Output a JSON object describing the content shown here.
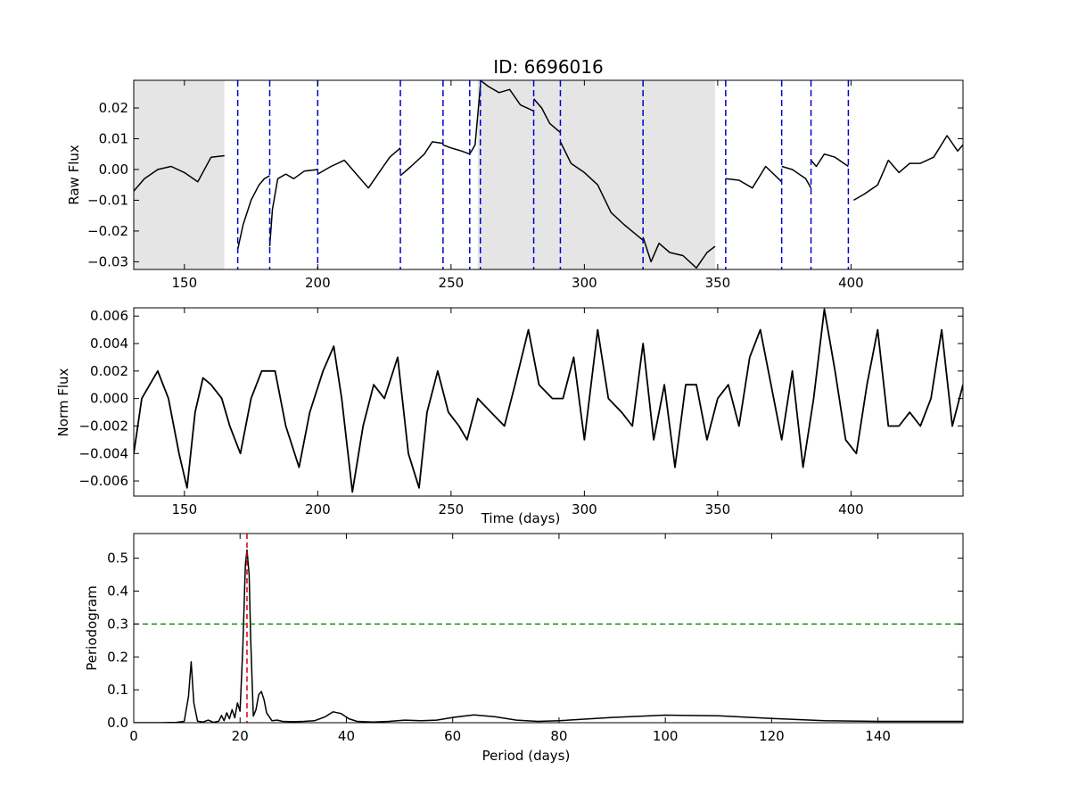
{
  "chart_data": [
    {
      "type": "line",
      "title": "ID: 6696016",
      "xlabel": "",
      "ylabel": "Raw Flux",
      "xlim": [
        131,
        442
      ],
      "ylim": [
        -0.0325,
        0.029
      ],
      "xticks": [
        150,
        200,
        250,
        300,
        350,
        400
      ],
      "yticks": [
        -0.03,
        -0.02,
        -0.01,
        0.0,
        0.01,
        0.02
      ],
      "ytick_labels": [
        "−0.03",
        "−0.02",
        "−0.01",
        "0.00",
        "0.01",
        "0.02"
      ],
      "shaded_ranges": [
        [
          131,
          165
        ],
        [
          260,
          349
        ]
      ],
      "shade_color": "#e5e5e5",
      "vlines": [
        170,
        182,
        200,
        231,
        247,
        257,
        261,
        281,
        291,
        322,
        353,
        374,
        385,
        399
      ],
      "vline_color": "#0000cc",
      "line_color": "#000000",
      "series": [
        {
          "x": [
            131,
            135,
            140,
            145,
            150,
            155,
            160,
            165
          ],
          "y": [
            -0.007,
            -0.003,
            0.0,
            0.001,
            -0.001,
            -0.004,
            0.004,
            0.0045
          ]
        },
        {
          "x": [
            170,
            172,
            175,
            178,
            180,
            182
          ],
          "y": [
            -0.026,
            -0.018,
            -0.01,
            -0.005,
            -0.003,
            -0.002
          ]
        },
        {
          "x": [
            182,
            183,
            185,
            188,
            191,
            195,
            200
          ],
          "y": [
            -0.025,
            -0.013,
            -0.003,
            -0.0015,
            -0.003,
            -0.0005,
            0.0
          ]
        },
        {
          "x": [
            200,
            205,
            210,
            215,
            219,
            223,
            227,
            231
          ],
          "y": [
            -0.0015,
            0.001,
            0.003,
            -0.002,
            -0.006,
            -0.001,
            0.004,
            0.007
          ]
        },
        {
          "x": [
            231,
            235,
            240,
            243,
            247
          ],
          "y": [
            -0.002,
            0.001,
            0.005,
            0.009,
            0.0085
          ]
        },
        {
          "x": [
            247,
            250,
            254,
            257
          ],
          "y": [
            0.008,
            0.007,
            0.006,
            0.005
          ]
        },
        {
          "x": [
            257,
            259,
            261
          ],
          "y": [
            0.005,
            0.008,
            0.027
          ]
        },
        {
          "x": [
            261,
            264,
            268,
            272,
            276,
            281
          ],
          "y": [
            0.029,
            0.027,
            0.025,
            0.026,
            0.021,
            0.019
          ]
        },
        {
          "x": [
            281,
            284,
            287,
            291
          ],
          "y": [
            0.023,
            0.02,
            0.015,
            0.012
          ]
        },
        {
          "x": [
            291,
            295,
            300,
            305,
            310,
            315,
            322
          ],
          "y": [
            0.009,
            0.002,
            -0.001,
            -0.005,
            -0.014,
            -0.018,
            -0.023
          ]
        },
        {
          "x": [
            322,
            325,
            328,
            332,
            337,
            342,
            346,
            349
          ],
          "y": [
            -0.022,
            -0.03,
            -0.024,
            -0.027,
            -0.028,
            -0.032,
            -0.027,
            -0.025
          ]
        },
        {
          "x": [
            353,
            358,
            363,
            368,
            374
          ],
          "y": [
            -0.003,
            -0.0035,
            -0.006,
            0.001,
            -0.004
          ]
        },
        {
          "x": [
            374,
            378,
            383,
            385
          ],
          "y": [
            0.001,
            0.0,
            -0.003,
            -0.006
          ]
        },
        {
          "x": [
            385,
            387,
            390,
            394,
            399
          ],
          "y": [
            0.003,
            0.001,
            0.005,
            0.004,
            0.001
          ]
        },
        {
          "x": [
            401,
            405,
            410,
            414,
            418,
            422,
            426,
            431,
            436,
            440,
            442
          ],
          "y": [
            -0.01,
            -0.008,
            -0.005,
            0.003,
            -0.001,
            0.002,
            0.002,
            0.004,
            0.011,
            0.006,
            0.008
          ]
        }
      ]
    },
    {
      "type": "line",
      "title": "",
      "xlabel": "Time (days)",
      "ylabel": "Norm Flux",
      "xlim": [
        131,
        442
      ],
      "ylim": [
        -0.0071,
        0.0066
      ],
      "xticks": [
        150,
        200,
        250,
        300,
        350,
        400
      ],
      "yticks": [
        -0.006,
        -0.004,
        -0.002,
        0.0,
        0.002,
        0.004,
        0.006
      ],
      "ytick_labels": [
        "−0.006",
        "−0.004",
        "−0.002",
        "0.000",
        "0.002",
        "0.004",
        "0.006"
      ],
      "line_color": "#000000",
      "x": [
        131,
        134,
        137,
        140,
        144,
        148,
        151,
        154,
        157,
        160,
        164,
        167,
        171,
        175,
        179,
        181,
        184,
        188,
        193,
        197,
        202,
        206,
        209,
        213,
        217,
        221,
        225,
        230,
        234,
        238,
        241,
        245,
        249,
        253,
        256,
        260,
        265,
        270,
        274,
        279,
        283,
        288,
        292,
        296,
        300,
        305,
        309,
        314,
        318,
        322,
        326,
        330,
        334,
        338,
        342,
        346,
        350,
        354,
        358,
        362,
        366,
        370,
        374,
        378,
        382,
        386,
        390,
        394,
        398,
        402,
        406,
        410,
        414,
        418,
        422,
        426,
        430,
        434,
        438,
        442
      ],
      "y": [
        -0.004,
        0.0,
        0.001,
        0.002,
        0.0,
        -0.004,
        -0.0065,
        -0.001,
        0.0015,
        0.001,
        0.0,
        -0.002,
        -0.004,
        0.0,
        0.002,
        0.002,
        0.002,
        -0.002,
        -0.005,
        -0.001,
        0.002,
        0.0038,
        0.0,
        -0.0068,
        -0.002,
        0.001,
        0.0,
        0.003,
        -0.004,
        -0.0065,
        -0.001,
        0.002,
        -0.001,
        -0.002,
        -0.003,
        0.0,
        -0.001,
        -0.002,
        0.001,
        0.005,
        0.001,
        0.0,
        0.0,
        0.003,
        -0.003,
        0.005,
        0.0,
        -0.001,
        -0.002,
        0.004,
        -0.003,
        0.001,
        -0.005,
        0.001,
        0.001,
        -0.003,
        0.0,
        0.001,
        -0.002,
        0.003,
        0.005,
        0.001,
        -0.003,
        0.002,
        -0.005,
        0.0,
        0.0065,
        0.002,
        -0.003,
        -0.004,
        0.001,
        0.005,
        -0.002,
        -0.002,
        -0.001,
        -0.002,
        0.0,
        0.005,
        -0.002,
        0.001
      ]
    },
    {
      "type": "line",
      "title": "",
      "xlabel": "Period (days)",
      "ylabel": "Periodogram",
      "xlim": [
        0,
        156
      ],
      "ylim": [
        0,
        0.575
      ],
      "xticks": [
        0,
        20,
        40,
        60,
        80,
        100,
        120,
        140
      ],
      "yticks": [
        0.0,
        0.1,
        0.2,
        0.3,
        0.4,
        0.5
      ],
      "ytick_labels": [
        "0.0",
        "0.1",
        "0.2",
        "0.3",
        "0.4",
        "0.5"
      ],
      "line_color": "#000000",
      "hline": 0.3,
      "hline_color": "#007700",
      "vline": 21.3,
      "vline_color": "#dd0000",
      "x": [
        0,
        5,
        8,
        9.5,
        10.3,
        10.8,
        11.3,
        12,
        13,
        14,
        15,
        16,
        16.5,
        17,
        17.5,
        18,
        18.5,
        19,
        19.5,
        20,
        20.5,
        21,
        21.3,
        21.7,
        22,
        22.5,
        23,
        23.5,
        24,
        24.5,
        25,
        26,
        27,
        28,
        30,
        32,
        34,
        36,
        37.5,
        39,
        40.5,
        42,
        45,
        48,
        51,
        54,
        57,
        60,
        64,
        68,
        72,
        76,
        80,
        90,
        100,
        110,
        120,
        130,
        140,
        150,
        156
      ],
      "y": [
        0.0,
        0.0,
        0.001,
        0.004,
        0.08,
        0.185,
        0.06,
        0.005,
        0.002,
        0.008,
        0.001,
        0.005,
        0.022,
        0.006,
        0.03,
        0.012,
        0.04,
        0.015,
        0.06,
        0.035,
        0.22,
        0.48,
        0.525,
        0.45,
        0.25,
        0.02,
        0.04,
        0.085,
        0.095,
        0.07,
        0.03,
        0.006,
        0.008,
        0.004,
        0.003,
        0.004,
        0.006,
        0.018,
        0.033,
        0.028,
        0.012,
        0.004,
        0.002,
        0.004,
        0.008,
        0.006,
        0.008,
        0.016,
        0.024,
        0.018,
        0.008,
        0.004,
        0.006,
        0.016,
        0.023,
        0.021,
        0.013,
        0.006,
        0.004,
        0.004,
        0.004
      ]
    }
  ]
}
